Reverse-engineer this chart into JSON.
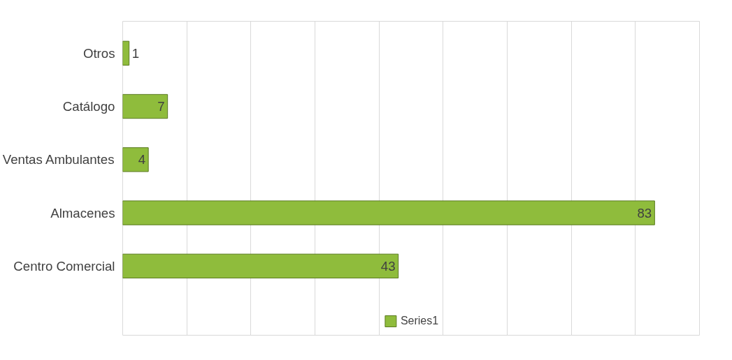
{
  "chart_data": {
    "type": "bar",
    "orientation": "horizontal",
    "categories": [
      "Otros",
      "Catálogo",
      "Ventas Ambulantes",
      "Almacenes",
      "Centro Comercial"
    ],
    "series": [
      {
        "name": "Series1",
        "color": "#8fbc3c",
        "values": [
          1,
          7,
          4,
          83,
          43
        ]
      }
    ],
    "xlim": [
      0,
      90
    ],
    "xticks": [
      {
        "value": 0,
        "label": null
      },
      {
        "value": 10,
        "label": null
      },
      {
        "value": 20,
        "label": null
      },
      {
        "value": 30,
        "label": null
      },
      {
        "value": 40,
        "label": null
      },
      {
        "value": 50,
        "label": null
      },
      {
        "value": 60,
        "label": null
      },
      {
        "value": 70,
        "label": null
      },
      {
        "value": 80,
        "label": null
      },
      {
        "value": 90,
        "label": null
      }
    ],
    "grid": "x",
    "legend": "bottom",
    "data_labels": true,
    "tick_labels": "y"
  }
}
